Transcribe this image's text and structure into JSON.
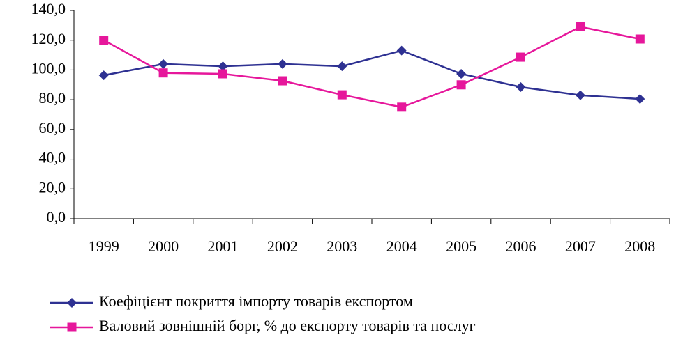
{
  "chart_data": {
    "type": "line",
    "categories": [
      "1999",
      "2000",
      "2001",
      "2002",
      "2003",
      "2004",
      "2005",
      "2006",
      "2007",
      "2008"
    ],
    "series": [
      {
        "name": "Коефіцієнт покриття імпорту товарів експортом",
        "color": "#2e3192",
        "marker": "diamond",
        "values": [
          96.4,
          104,
          102.5,
          104,
          102.5,
          113,
          97.4,
          88.5,
          83,
          80.5
        ]
      },
      {
        "name": "Валовий зовнішній борг, % до експорту товарів та послуг",
        "color": "#e6179b",
        "marker": "square",
        "values": [
          120,
          98,
          97.4,
          92.7,
          83.3,
          75,
          90,
          108.6,
          129,
          120.8
        ]
      }
    ],
    "ylim": [
      0,
      140
    ],
    "yticks": [
      {
        "value": 0,
        "label": "0,0"
      },
      {
        "value": 20,
        "label": "20,0"
      },
      {
        "value": 40,
        "label": "40,0"
      },
      {
        "value": 60,
        "label": "60,0"
      },
      {
        "value": 80,
        "label": "80,0"
      },
      {
        "value": 100,
        "label": "100,0"
      },
      {
        "value": 120,
        "label": "120,0"
      },
      {
        "value": 140,
        "label": "140,0"
      }
    ],
    "grid": false,
    "legend": "bottom"
  }
}
